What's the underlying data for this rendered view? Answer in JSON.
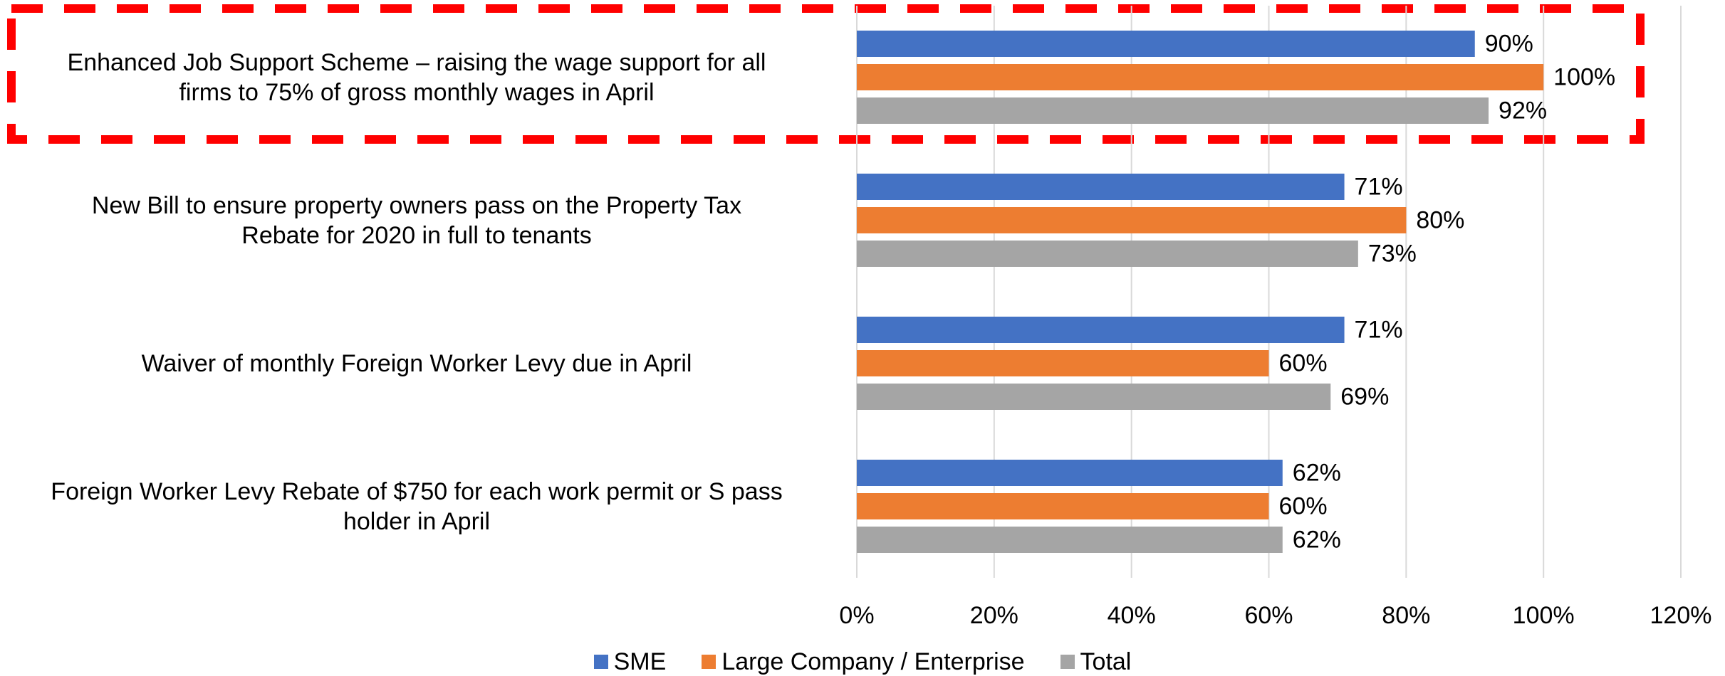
{
  "chart_data": {
    "type": "barh",
    "categories": [
      "Enhanced Job Support Scheme – raising the wage support for all\nfirms to 75% of gross monthly wages in April",
      "New Bill to ensure property owners pass on the Property Tax\nRebate for 2020 in full to tenants",
      "Waiver of monthly Foreign Worker Levy due in April",
      "Foreign Worker Levy Rebate of $750 for each work permit or S pass\nholder in April"
    ],
    "series": [
      {
        "name": "SME",
        "color": "#4472c4",
        "values": [
          90,
          71,
          71,
          62
        ],
        "value_labels": [
          "90%",
          "71%",
          "71%",
          "62%"
        ]
      },
      {
        "name": "Large Company / Enterprise",
        "color": "#ed7d31",
        "values": [
          100,
          80,
          60,
          60
        ],
        "value_labels": [
          "100%",
          "80%",
          "60%",
          "60%"
        ]
      },
      {
        "name": "Total",
        "color": "#a5a5a5",
        "values": [
          92,
          73,
          69,
          62
        ],
        "value_labels": [
          "92%",
          "73%",
          "69%",
          "62%"
        ]
      }
    ],
    "xlim": [
      0,
      120
    ],
    "xticks": [
      {
        "value": 0,
        "label": "0%"
      },
      {
        "value": 20,
        "label": "20%"
      },
      {
        "value": 40,
        "label": "40%"
      },
      {
        "value": 60,
        "label": "60%"
      },
      {
        "value": 80,
        "label": "80%"
      },
      {
        "value": 100,
        "label": "100%"
      },
      {
        "value": 120,
        "label": "120%"
      }
    ],
    "grid": true,
    "legend": "bottom"
  }
}
